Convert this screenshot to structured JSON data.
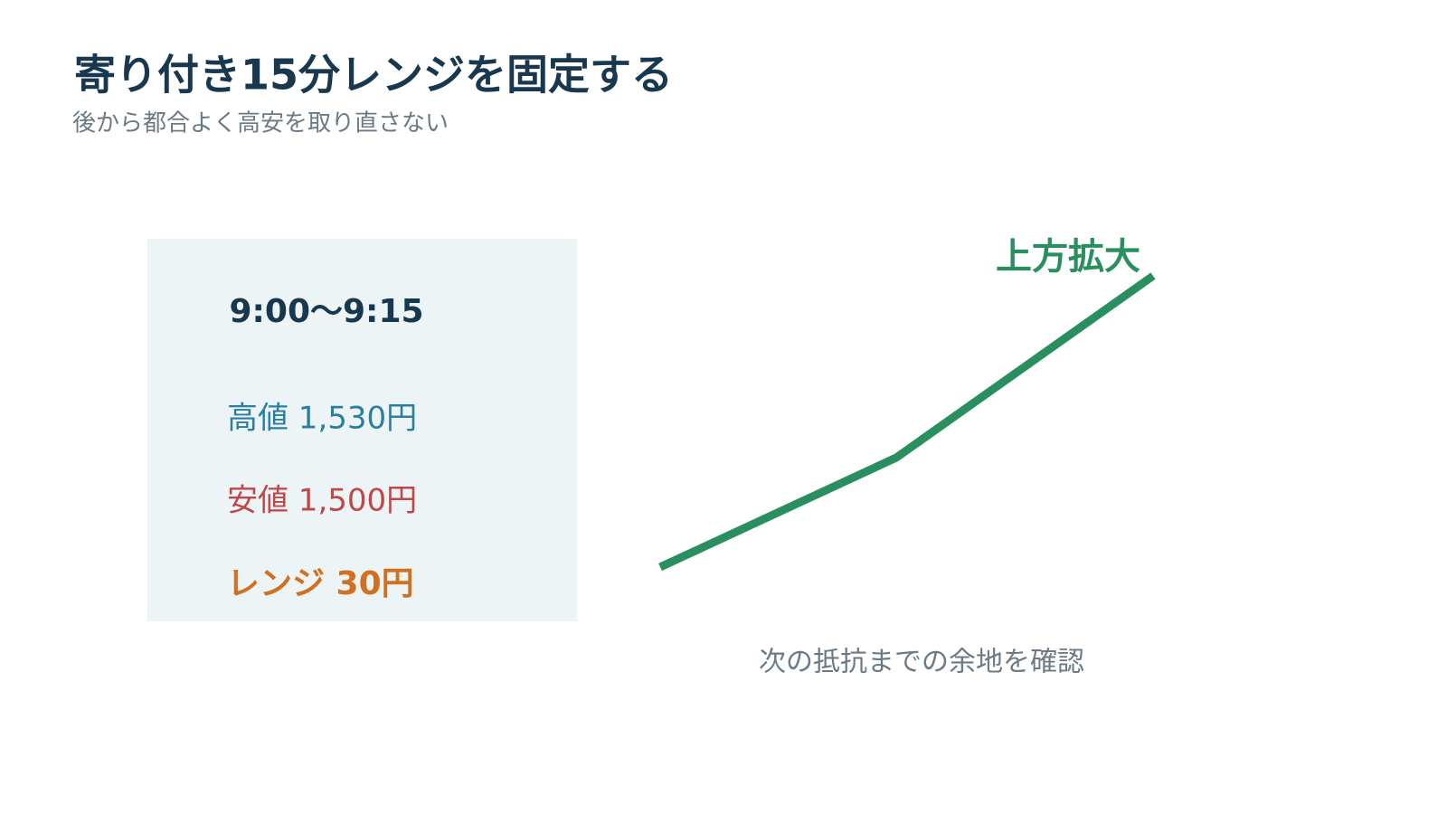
{
  "header": {
    "title": "寄り付き15分レンジを固定する",
    "subtitle": "後から都合よく高安を取り直さない"
  },
  "panel": {
    "time": "9:00～9:15",
    "high": "高値 1,530円",
    "low": "安値 1,500円",
    "range": "レンジ 30円"
  },
  "annotation": {
    "label": "上方拡大",
    "caption": "次の抵抗までの余地を確認"
  }
}
